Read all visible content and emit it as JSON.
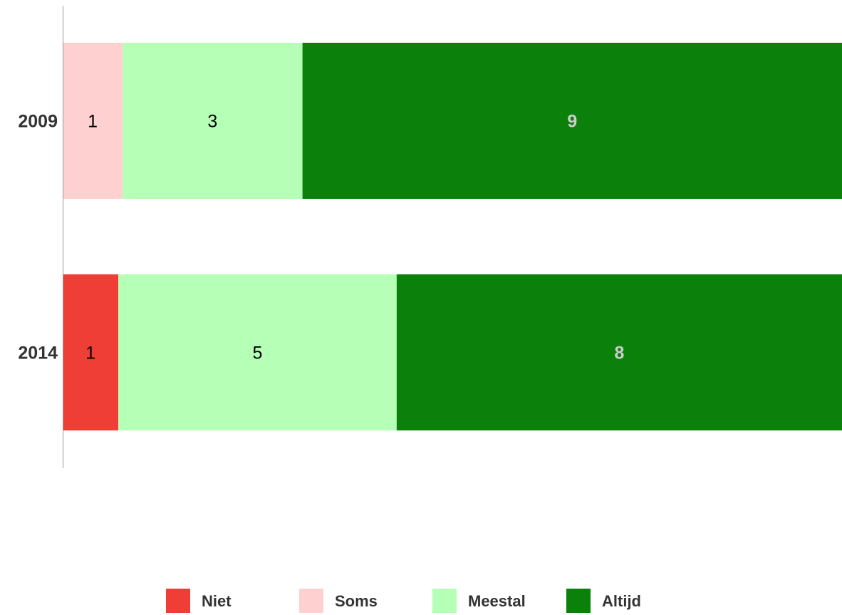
{
  "chart_data": {
    "type": "bar",
    "orientation": "horizontal",
    "stacked": true,
    "percent_stacked": true,
    "categories": [
      "2009",
      "2014"
    ],
    "series": [
      {
        "name": "Niet",
        "color": "#ef3e36",
        "values": [
          0,
          1
        ]
      },
      {
        "name": "Soms",
        "color": "#ffd0d0",
        "values": [
          1,
          0
        ]
      },
      {
        "name": "Meestal",
        "color": "#b6ffb6",
        "values": [
          3,
          5
        ]
      },
      {
        "name": "Altijd",
        "color": "#0b800b",
        "values": [
          9,
          8
        ]
      }
    ],
    "label_colors": {
      "dark": "#000000",
      "light": "#cccccc"
    },
    "grid": false,
    "legend_position": "bottom"
  }
}
